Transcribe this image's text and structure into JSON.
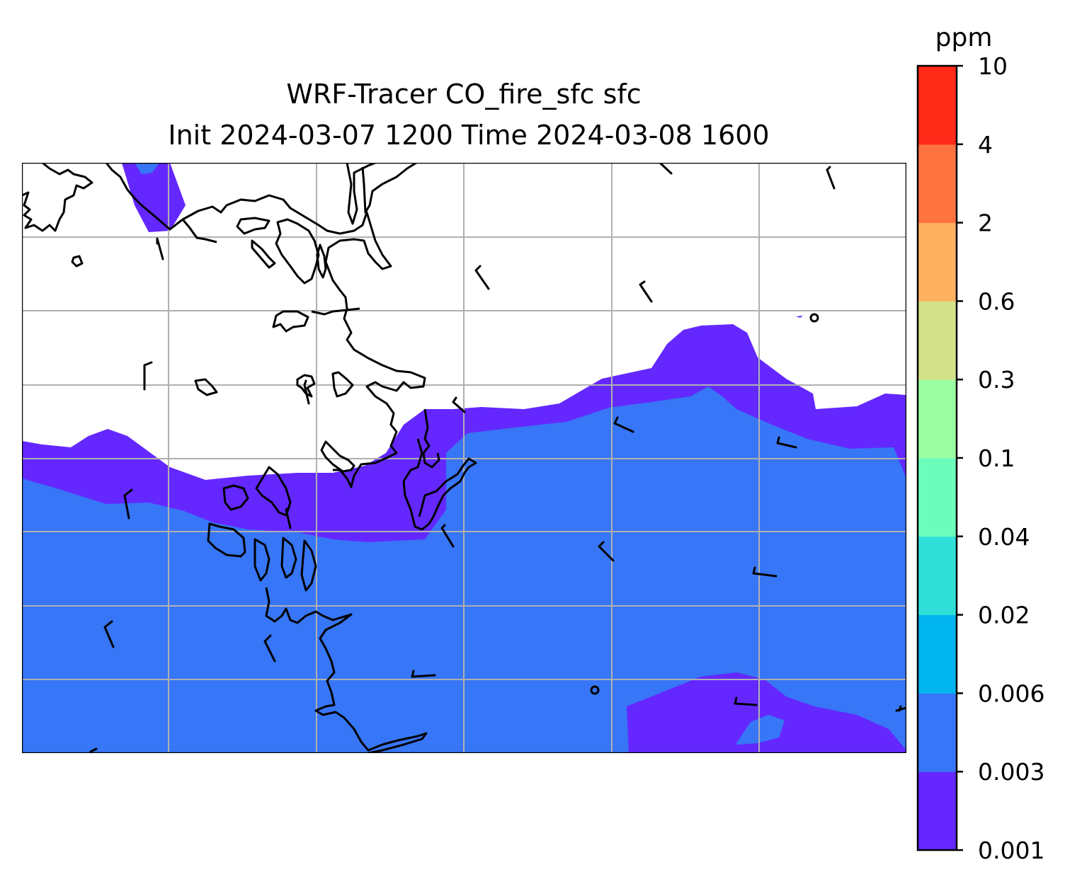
{
  "title_line1": "WRF-Tracer CO_fire_sfc sfc",
  "title_line2": "Init 2024-03-07 1200 Time 2024-03-08 1600",
  "colorbar": {
    "unit": "ppm",
    "levels": [
      "0.001",
      "0.003",
      "0.006",
      "0.02",
      "0.04",
      "0.1",
      "0.3",
      "0.6",
      "2",
      "4",
      "10"
    ],
    "colors": [
      "#6428ff",
      "#3776f6",
      "#00b4ef",
      "#30e0d8",
      "#6cfdbd",
      "#9dfda2",
      "#d3e28a",
      "#feb061",
      "#ff7340",
      "#ff2a18"
    ]
  },
  "map": {
    "fill_colors": {
      "low": "#6428ff",
      "mid": "#3776f6"
    },
    "gridline_color": "#b0b0b0",
    "coastline_color": "#000000",
    "wind_barbs": "yes"
  }
}
